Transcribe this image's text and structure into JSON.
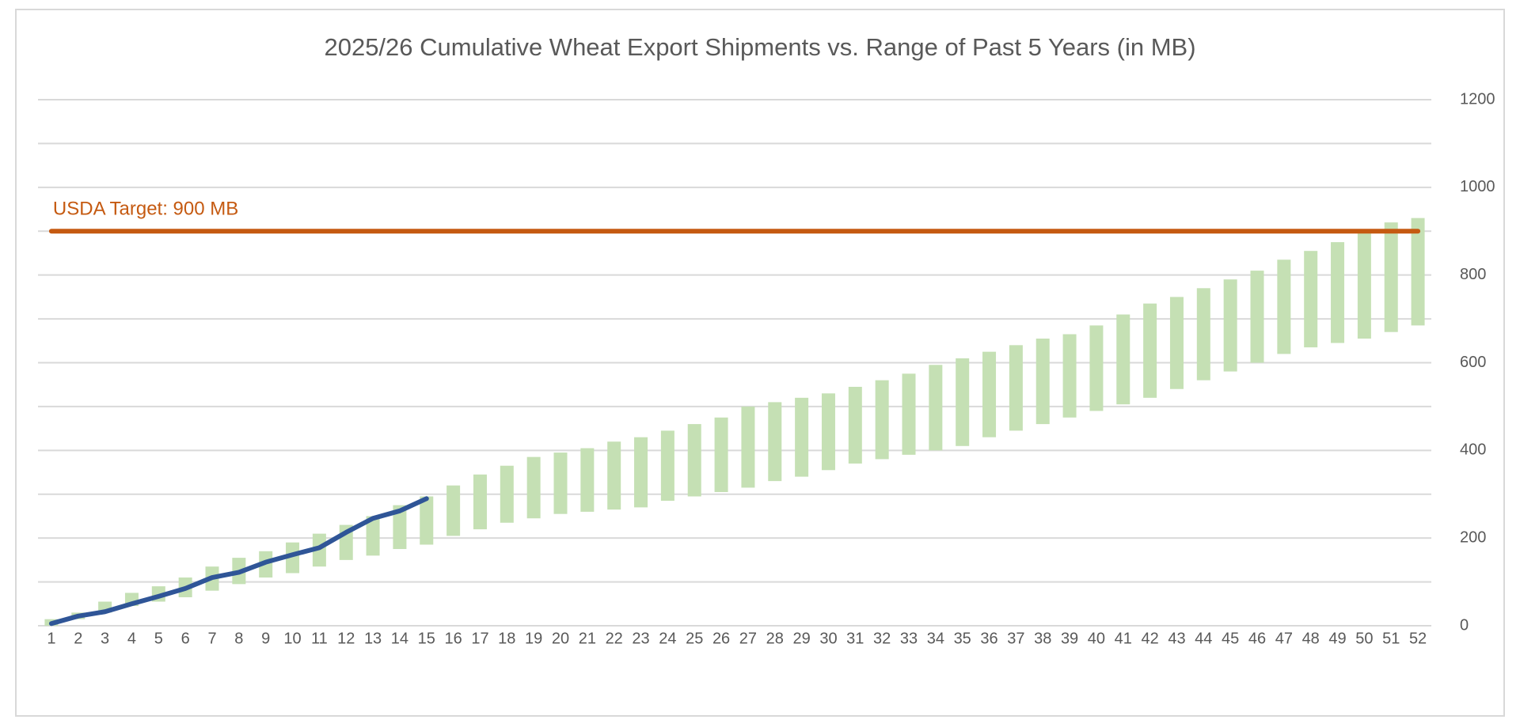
{
  "chart_data": {
    "type": "range_bar",
    "title": "2025/26 Cumulative Wheat Export Shipments vs. Range of Past 5 Years (in MB)",
    "categories": [
      1,
      2,
      3,
      4,
      5,
      6,
      7,
      8,
      9,
      10,
      11,
      12,
      13,
      14,
      15,
      16,
      17,
      18,
      19,
      20,
      21,
      22,
      23,
      24,
      25,
      26,
      27,
      28,
      29,
      30,
      31,
      32,
      33,
      34,
      35,
      36,
      37,
      38,
      39,
      40,
      41,
      42,
      43,
      44,
      45,
      46,
      47,
      48,
      49,
      50,
      51,
      52
    ],
    "series": [
      {
        "type": "range",
        "color": "#c5e0b4",
        "low": [
          0,
          15,
          30,
          45,
          55,
          65,
          80,
          95,
          110,
          120,
          135,
          150,
          160,
          175,
          185,
          205,
          220,
          235,
          245,
          255,
          260,
          265,
          270,
          285,
          295,
          305,
          315,
          330,
          340,
          355,
          370,
          380,
          390,
          400,
          410,
          430,
          445,
          460,
          475,
          490,
          505,
          520,
          540,
          560,
          580,
          600,
          620,
          635,
          645,
          655,
          670,
          685
        ],
        "high": [
          15,
          30,
          55,
          75,
          90,
          110,
          135,
          155,
          170,
          190,
          210,
          230,
          250,
          275,
          295,
          320,
          345,
          365,
          385,
          395,
          405,
          420,
          430,
          445,
          460,
          475,
          500,
          510,
          520,
          530,
          545,
          560,
          575,
          595,
          610,
          625,
          640,
          655,
          665,
          685,
          710,
          735,
          750,
          770,
          790,
          810,
          835,
          855,
          875,
          895,
          920,
          930
        ]
      },
      {
        "type": "line",
        "color": "#2f5597",
        "values": [
          5,
          22,
          32,
          50,
          67,
          85,
          110,
          122,
          145,
          162,
          178,
          213,
          245,
          262,
          290,
          null,
          null,
          null,
          null,
          null,
          null,
          null,
          null,
          null,
          null,
          null,
          null,
          null,
          null,
          null,
          null,
          null,
          null,
          null,
          null,
          null,
          null,
          null,
          null,
          null,
          null,
          null,
          null,
          null,
          null,
          null,
          null,
          null,
          null,
          null,
          null,
          null
        ]
      }
    ],
    "target": {
      "value": 900,
      "label": "USDA Target: 900 MB",
      "color": "#c55a11"
    },
    "ylim": [
      0,
      1200
    ],
    "yticks": [
      0,
      200,
      400,
      600,
      800,
      1000,
      1200
    ],
    "ygrid": [
      0,
      100,
      200,
      300,
      400,
      500,
      600,
      700,
      800,
      900,
      1000,
      1100,
      1200
    ],
    "y_axis_side": "right"
  }
}
